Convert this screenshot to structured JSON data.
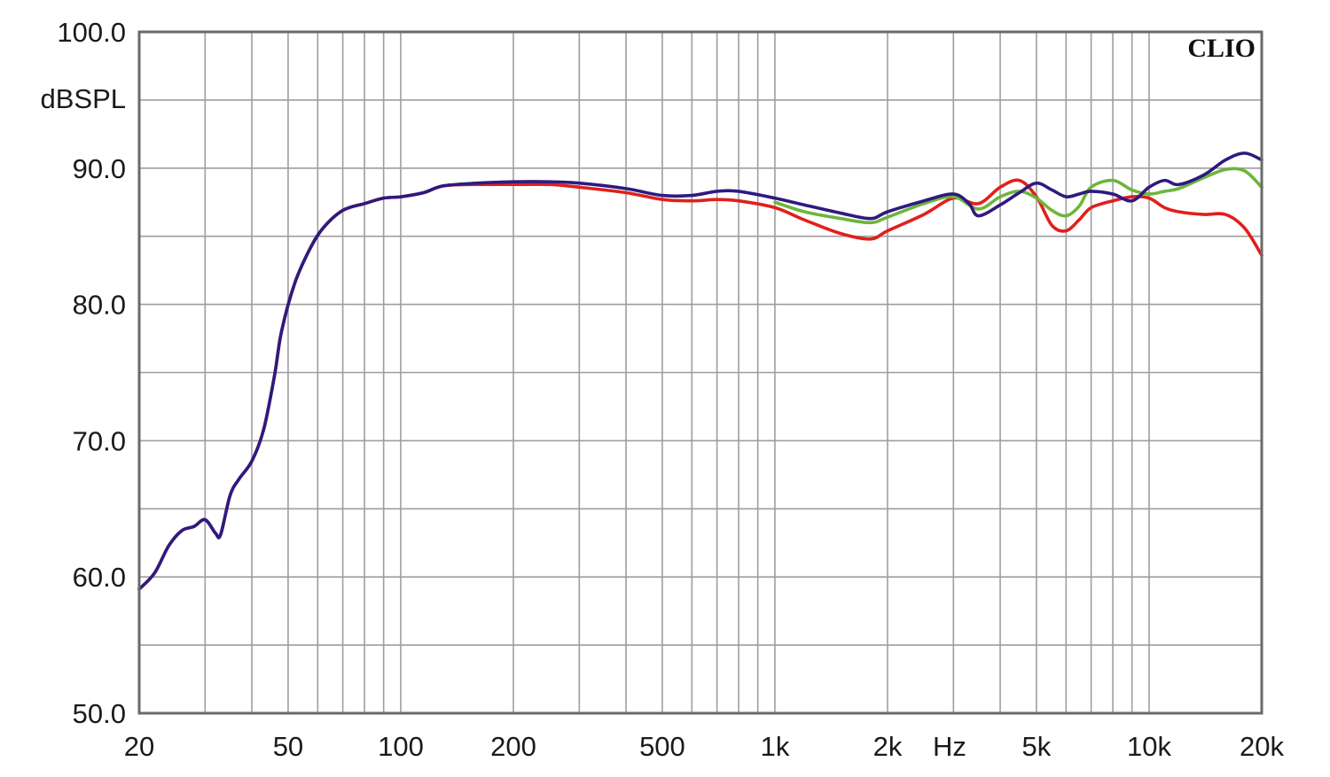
{
  "chart_data": {
    "type": "line",
    "brand": "CLIO",
    "ylabel": "dBSPL",
    "xlabel": "Hz",
    "xscale": "log",
    "xlim": [
      20,
      20000
    ],
    "ylim": [
      50,
      100
    ],
    "grid": true,
    "x_ticks": [
      {
        "value": 20,
        "label": "20"
      },
      {
        "value": 50,
        "label": "50"
      },
      {
        "value": 100,
        "label": "100"
      },
      {
        "value": 200,
        "label": "200"
      },
      {
        "value": 500,
        "label": "500"
      },
      {
        "value": 1000,
        "label": "1k"
      },
      {
        "value": 2000,
        "label": "2k"
      },
      {
        "value": 5000,
        "label": "5k"
      },
      {
        "value": 10000,
        "label": "10k"
      },
      {
        "value": 20000,
        "label": "20k"
      }
    ],
    "y_ticks": [
      {
        "value": 100,
        "label": "100.0"
      },
      {
        "value": 90,
        "label": "90.0"
      },
      {
        "value": 80,
        "label": "80.0"
      },
      {
        "value": 70,
        "label": "70.0"
      },
      {
        "value": 60,
        "label": "60.0"
      },
      {
        "value": 50,
        "label": "50.0"
      }
    ],
    "series": [
      {
        "color": "#e0201c",
        "points": [
          [
            20,
            59.1
          ],
          [
            22,
            60.3
          ],
          [
            24,
            62.3
          ],
          [
            26,
            63.4
          ],
          [
            28,
            63.7
          ],
          [
            30,
            64.2
          ],
          [
            32,
            63.2
          ],
          [
            33,
            63.1
          ],
          [
            35,
            66.0
          ],
          [
            37,
            67.2
          ],
          [
            40,
            68.5
          ],
          [
            43,
            70.8
          ],
          [
            46,
            74.8
          ],
          [
            48,
            78.0
          ],
          [
            52,
            81.5
          ],
          [
            57,
            84.0
          ],
          [
            62,
            85.6
          ],
          [
            70,
            86.9
          ],
          [
            80,
            87.4
          ],
          [
            90,
            87.8
          ],
          [
            100,
            87.9
          ],
          [
            115,
            88.2
          ],
          [
            130,
            88.7
          ],
          [
            160,
            88.8
          ],
          [
            200,
            88.8
          ],
          [
            250,
            88.8
          ],
          [
            300,
            88.6
          ],
          [
            400,
            88.2
          ],
          [
            500,
            87.7
          ],
          [
            600,
            87.6
          ],
          [
            700,
            87.7
          ],
          [
            800,
            87.6
          ],
          [
            1000,
            87.1
          ],
          [
            1200,
            86.2
          ],
          [
            1500,
            85.2
          ],
          [
            1800,
            84.8
          ],
          [
            2000,
            85.4
          ],
          [
            2500,
            86.6
          ],
          [
            3000,
            87.8
          ],
          [
            3500,
            87.4
          ],
          [
            4000,
            88.6
          ],
          [
            4500,
            89.1
          ],
          [
            5000,
            87.9
          ],
          [
            5500,
            85.8
          ],
          [
            6000,
            85.4
          ],
          [
            6500,
            86.2
          ],
          [
            7000,
            87.1
          ],
          [
            8000,
            87.6
          ],
          [
            9000,
            87.9
          ],
          [
            10000,
            87.8
          ],
          [
            11000,
            87.1
          ],
          [
            12000,
            86.8
          ],
          [
            14000,
            86.6
          ],
          [
            16000,
            86.6
          ],
          [
            18000,
            85.6
          ],
          [
            20000,
            83.6
          ]
        ]
      },
      {
        "color": "#6cb63a",
        "points": [
          [
            1000,
            87.5
          ],
          [
            1200,
            86.8
          ],
          [
            1500,
            86.3
          ],
          [
            1800,
            86.0
          ],
          [
            2000,
            86.4
          ],
          [
            2500,
            87.4
          ],
          [
            3000,
            87.9
          ],
          [
            3500,
            87.0
          ],
          [
            4000,
            87.9
          ],
          [
            4500,
            88.3
          ],
          [
            5000,
            87.8
          ],
          [
            5500,
            86.9
          ],
          [
            6000,
            86.5
          ],
          [
            6500,
            87.2
          ],
          [
            7000,
            88.6
          ],
          [
            8000,
            89.1
          ],
          [
            9000,
            88.4
          ],
          [
            10000,
            88.1
          ],
          [
            11000,
            88.3
          ],
          [
            12000,
            88.5
          ],
          [
            14000,
            89.3
          ],
          [
            16000,
            89.9
          ],
          [
            18000,
            89.8
          ],
          [
            20000,
            88.6
          ]
        ]
      },
      {
        "color": "#2e1a80",
        "points": [
          [
            20,
            59.1
          ],
          [
            22,
            60.3
          ],
          [
            24,
            62.3
          ],
          [
            26,
            63.4
          ],
          [
            28,
            63.7
          ],
          [
            30,
            64.2
          ],
          [
            32,
            63.2
          ],
          [
            33,
            63.1
          ],
          [
            35,
            66.0
          ],
          [
            37,
            67.2
          ],
          [
            40,
            68.5
          ],
          [
            43,
            70.8
          ],
          [
            46,
            74.8
          ],
          [
            48,
            78.0
          ],
          [
            52,
            81.5
          ],
          [
            57,
            84.0
          ],
          [
            62,
            85.6
          ],
          [
            70,
            86.9
          ],
          [
            80,
            87.4
          ],
          [
            90,
            87.8
          ],
          [
            100,
            87.9
          ],
          [
            115,
            88.2
          ],
          [
            130,
            88.7
          ],
          [
            160,
            88.9
          ],
          [
            200,
            89.0
          ],
          [
            250,
            89.0
          ],
          [
            300,
            88.9
          ],
          [
            400,
            88.5
          ],
          [
            500,
            88.0
          ],
          [
            600,
            88.0
          ],
          [
            700,
            88.3
          ],
          [
            800,
            88.3
          ],
          [
            1000,
            87.8
          ],
          [
            1200,
            87.3
          ],
          [
            1500,
            86.7
          ],
          [
            1800,
            86.3
          ],
          [
            2000,
            86.8
          ],
          [
            2500,
            87.6
          ],
          [
            3000,
            88.1
          ],
          [
            3300,
            87.4
          ],
          [
            3500,
            86.5
          ],
          [
            4000,
            87.3
          ],
          [
            4500,
            88.2
          ],
          [
            5000,
            88.9
          ],
          [
            5500,
            88.4
          ],
          [
            6000,
            87.9
          ],
          [
            6500,
            88.1
          ],
          [
            7000,
            88.3
          ],
          [
            8000,
            88.1
          ],
          [
            9000,
            87.6
          ],
          [
            10000,
            88.6
          ],
          [
            11000,
            89.1
          ],
          [
            12000,
            88.8
          ],
          [
            14000,
            89.5
          ],
          [
            16000,
            90.6
          ],
          [
            18000,
            91.1
          ],
          [
            20000,
            90.6
          ]
        ]
      }
    ]
  }
}
